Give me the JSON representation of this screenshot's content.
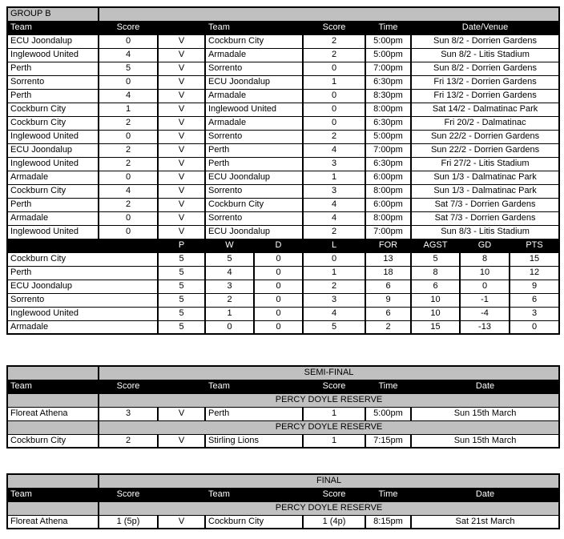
{
  "colors": {
    "header_bg": "#000000",
    "header_text": "#FFFFFF",
    "band_bg": "#C0C0C0",
    "border": "#000000"
  },
  "group_b": {
    "title": "GROUP B",
    "fixtures_headers": [
      "Team",
      "Score",
      "",
      "Team",
      "Score",
      "Time",
      "Date/Venue"
    ],
    "fixtures": [
      [
        "ECU Joondalup",
        "0",
        "V",
        "Cockburn City",
        "2",
        "5:00pm",
        "Sun 8/2 - Dorrien Gardens"
      ],
      [
        "Inglewood United",
        "4",
        "V",
        "Armadale",
        "2",
        "5:00pm",
        "Sun 8/2 - Litis Stadium"
      ],
      [
        "Perth",
        "5",
        "V",
        "Sorrento",
        "0",
        "7:00pm",
        "Sun 8/2 - Dorrien Gardens"
      ],
      [
        "Sorrento",
        "0",
        "V",
        "ECU Joondalup",
        "1",
        "6:30pm",
        "Fri 13/2 - Dorrien Gardens"
      ],
      [
        "Perth",
        "4",
        "V",
        "Armadale",
        "0",
        "8:30pm",
        "Fri 13/2 - Dorrien Gardens"
      ],
      [
        "Cockburn City",
        "1",
        "V",
        "Inglewood United",
        "0",
        "8:00pm",
        "Sat 14/2 - Dalmatinac Park"
      ],
      [
        "Cockburn City",
        "2",
        "V",
        "Armadale",
        "0",
        "6:30pm",
        "Fri 20/2 - Dalmatinac"
      ],
      [
        "Inglewood United",
        "0",
        "V",
        "Sorrento",
        "2",
        "5:00pm",
        "Sun 22/2 - Dorrien Gardens"
      ],
      [
        "ECU Joondalup",
        "2",
        "V",
        "Perth",
        "4",
        "7:00pm",
        "Sun 22/2 - Dorrien Gardens"
      ],
      [
        "Inglewood United",
        "2",
        "V",
        "Perth",
        "3",
        "6:30pm",
        "Fri 27/2 - Litis Stadium"
      ],
      [
        "Armadale",
        "0",
        "V",
        "ECU Joondalup",
        "1",
        "6:00pm",
        "Sun 1/3 - Dalmatinac Park"
      ],
      [
        "Cockburn City",
        "4",
        "V",
        "Sorrento",
        "3",
        "8:00pm",
        "Sun 1/3 - Dalmatinac Park"
      ],
      [
        "Perth",
        "2",
        "V",
        "Cockburn City",
        "4",
        "6:00pm",
        "Sat 7/3 - Dorrien Gardens"
      ],
      [
        "Armadale",
        "0",
        "V",
        "Sorrento",
        "4",
        "8:00pm",
        "Sat 7/3 - Dorrien Gardens"
      ],
      [
        "Inglewood United",
        "0",
        "V",
        "ECU Joondalup",
        "2",
        "7:00pm",
        "Sun 8/3 - Litis Stadium"
      ]
    ],
    "standings_headers": [
      "",
      "P",
      "W",
      "D",
      "L",
      "FOR",
      "AGST",
      "GD",
      "PTS"
    ],
    "standings": [
      [
        "Cockburn City",
        "5",
        "5",
        "0",
        "0",
        "13",
        "5",
        "8",
        "15"
      ],
      [
        "Perth",
        "5",
        "4",
        "0",
        "1",
        "18",
        "8",
        "10",
        "12"
      ],
      [
        "ECU Joondalup",
        "5",
        "3",
        "0",
        "2",
        "6",
        "6",
        "0",
        "9"
      ],
      [
        "Sorrento",
        "5",
        "2",
        "0",
        "3",
        "9",
        "10",
        "-1",
        "6"
      ],
      [
        "Inglewood United",
        "5",
        "1",
        "0",
        "4",
        "6",
        "10",
        "-4",
        "3"
      ],
      [
        "Armadale",
        "5",
        "0",
        "0",
        "5",
        "2",
        "15",
        "-13",
        "0"
      ]
    ]
  },
  "semi_final": {
    "title": "SEMI-FINAL",
    "headers": [
      "Team",
      "Score",
      "",
      "Team",
      "Score",
      "Time",
      "Date"
    ],
    "matches": [
      {
        "venue": "PERCY DOYLE RESERVE",
        "row": [
          "Floreat Athena",
          "3",
          "V",
          "Perth",
          "1",
          "5:00pm",
          "Sun 15th March"
        ]
      },
      {
        "venue": "PERCY DOYLE RESERVE",
        "row": [
          "Cockburn City",
          "2",
          "V",
          "Stirling Lions",
          "1",
          "7:15pm",
          "Sun 15th March"
        ]
      }
    ]
  },
  "final": {
    "title": "FINAL",
    "headers": [
      "Team",
      "Score",
      "",
      "Team",
      "Score",
      "Time",
      "Date"
    ],
    "matches": [
      {
        "venue": "PERCY DOYLE RESERVE",
        "row": [
          "Floreat Athena",
          "1 (5p)",
          "V",
          "Cockburn City",
          "1 (4p)",
          "8:15pm",
          "Sat 21st March"
        ]
      }
    ]
  }
}
